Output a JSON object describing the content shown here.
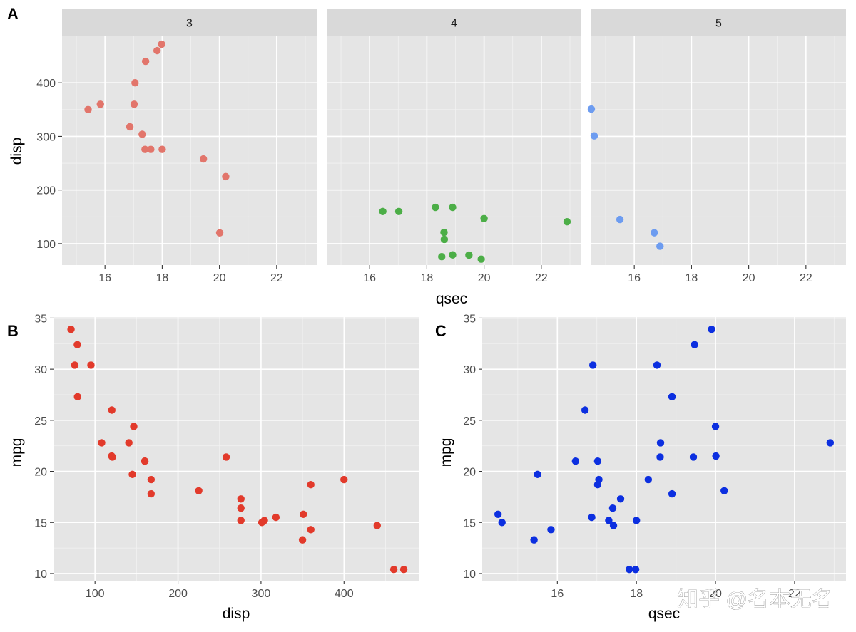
{
  "chart_data": [
    {
      "tag": "A",
      "type": "scatter",
      "facet_variable": "gear",
      "xlabel": "qsec",
      "ylabel": "disp",
      "xlim": [
        14.5,
        23.4
      ],
      "ylim": [
        60,
        488
      ],
      "x_ticks": [
        16,
        18,
        20,
        22
      ],
      "y_ticks": [
        100,
        200,
        300,
        400
      ],
      "x_tick_labels": [
        "16",
        "18",
        "20",
        "22"
      ],
      "y_tick_labels": [
        "100",
        "200",
        "300",
        "400"
      ],
      "facets": [
        {
          "label": "3",
          "color": "#e2756b",
          "points": [
            [
              19.44,
              258
            ],
            [
              17.02,
              360
            ],
            [
              20.22,
              225
            ],
            [
              15.84,
              360
            ],
            [
              17.4,
              275.8
            ],
            [
              17.6,
              275.8
            ],
            [
              18.0,
              275.8
            ],
            [
              17.98,
              472
            ],
            [
              17.82,
              460
            ],
            [
              17.42,
              440
            ],
            [
              20.01,
              120.1
            ],
            [
              16.87,
              318
            ],
            [
              17.3,
              304
            ],
            [
              15.41,
              350
            ],
            [
              17.05,
              400
            ]
          ]
        },
        {
          "label": "4",
          "color": "#4cae47",
          "points": [
            [
              16.46,
              160
            ],
            [
              17.02,
              160
            ],
            [
              18.61,
              108
            ],
            [
              20.0,
              146.7
            ],
            [
              22.9,
              140.8
            ],
            [
              18.3,
              167.6
            ],
            [
              18.9,
              167.6
            ],
            [
              19.47,
              78.7
            ],
            [
              18.52,
              75.7
            ],
            [
              19.9,
              71.1
            ],
            [
              18.6,
              121
            ],
            [
              18.9,
              79
            ]
          ]
        },
        {
          "label": "5",
          "color": "#6d9cf0",
          "points": [
            [
              16.7,
              120.3
            ],
            [
              16.9,
              95.1
            ],
            [
              14.5,
              351
            ],
            [
              15.5,
              145
            ],
            [
              14.6,
              301
            ]
          ]
        }
      ]
    },
    {
      "tag": "B",
      "type": "scatter",
      "color": "#e23a2b",
      "xlabel": "disp",
      "ylabel": "mpg",
      "xlim": [
        50,
        490
      ],
      "ylim": [
        9.3,
        35.1
      ],
      "x_ticks": [
        100,
        200,
        300,
        400
      ],
      "y_ticks": [
        10,
        15,
        20,
        25,
        30,
        35
      ],
      "x_tick_labels": [
        "100",
        "200",
        "300",
        "400"
      ],
      "y_tick_labels": [
        "10",
        "15",
        "20",
        "25",
        "30",
        "35"
      ],
      "points": [
        [
          160,
          21
        ],
        [
          160,
          21
        ],
        [
          108,
          22.8
        ],
        [
          258,
          21.4
        ],
        [
          360,
          18.7
        ],
        [
          225,
          18.1
        ],
        [
          360,
          14.3
        ],
        [
          146.7,
          24.4
        ],
        [
          140.8,
          22.8
        ],
        [
          167.6,
          19.2
        ],
        [
          167.6,
          17.8
        ],
        [
          275.8,
          16.4
        ],
        [
          275.8,
          17.3
        ],
        [
          275.8,
          15.2
        ],
        [
          472,
          10.4
        ],
        [
          460,
          10.4
        ],
        [
          440,
          14.7
        ],
        [
          78.7,
          32.4
        ],
        [
          75.7,
          30.4
        ],
        [
          71.1,
          33.9
        ],
        [
          120.1,
          21.5
        ],
        [
          318,
          15.5
        ],
        [
          304,
          15.2
        ],
        [
          350,
          13.3
        ],
        [
          400,
          19.2
        ],
        [
          79,
          27.3
        ],
        [
          120.3,
          26
        ],
        [
          95.1,
          30.4
        ],
        [
          351,
          15.8
        ],
        [
          145,
          19.7
        ],
        [
          301,
          15
        ],
        [
          121,
          21.4
        ]
      ]
    },
    {
      "tag": "C",
      "type": "scatter",
      "color": "#0c2fe0",
      "xlabel": "qsec",
      "ylabel": "mpg",
      "xlim": [
        14.1,
        23.3
      ],
      "ylim": [
        9.3,
        35.1
      ],
      "x_ticks": [
        16,
        18,
        20,
        22
      ],
      "y_ticks": [
        10,
        15,
        20,
        25,
        30,
        35
      ],
      "x_tick_labels": [
        "16",
        "18",
        "20",
        "22"
      ],
      "y_tick_labels": [
        "10",
        "15",
        "20",
        "25",
        "30",
        "35"
      ],
      "points": [
        [
          16.46,
          21
        ],
        [
          17.02,
          21
        ],
        [
          18.61,
          22.8
        ],
        [
          19.44,
          21.4
        ],
        [
          17.02,
          18.7
        ],
        [
          20.22,
          18.1
        ],
        [
          15.84,
          14.3
        ],
        [
          20.0,
          24.4
        ],
        [
          22.9,
          22.8
        ],
        [
          18.3,
          19.2
        ],
        [
          18.9,
          17.8
        ],
        [
          17.4,
          16.4
        ],
        [
          17.6,
          17.3
        ],
        [
          18.0,
          15.2
        ],
        [
          17.98,
          10.4
        ],
        [
          17.82,
          10.4
        ],
        [
          17.42,
          14.7
        ],
        [
          19.47,
          32.4
        ],
        [
          18.52,
          30.4
        ],
        [
          19.9,
          33.9
        ],
        [
          20.01,
          21.5
        ],
        [
          16.87,
          15.5
        ],
        [
          17.3,
          15.2
        ],
        [
          15.41,
          13.3
        ],
        [
          17.05,
          19.2
        ],
        [
          18.9,
          27.3
        ],
        [
          16.7,
          26
        ],
        [
          16.9,
          30.4
        ],
        [
          14.5,
          15.8
        ],
        [
          15.5,
          19.7
        ],
        [
          14.6,
          15
        ],
        [
          18.6,
          21.4
        ]
      ]
    }
  ],
  "watermark": "知乎 @名本无名"
}
